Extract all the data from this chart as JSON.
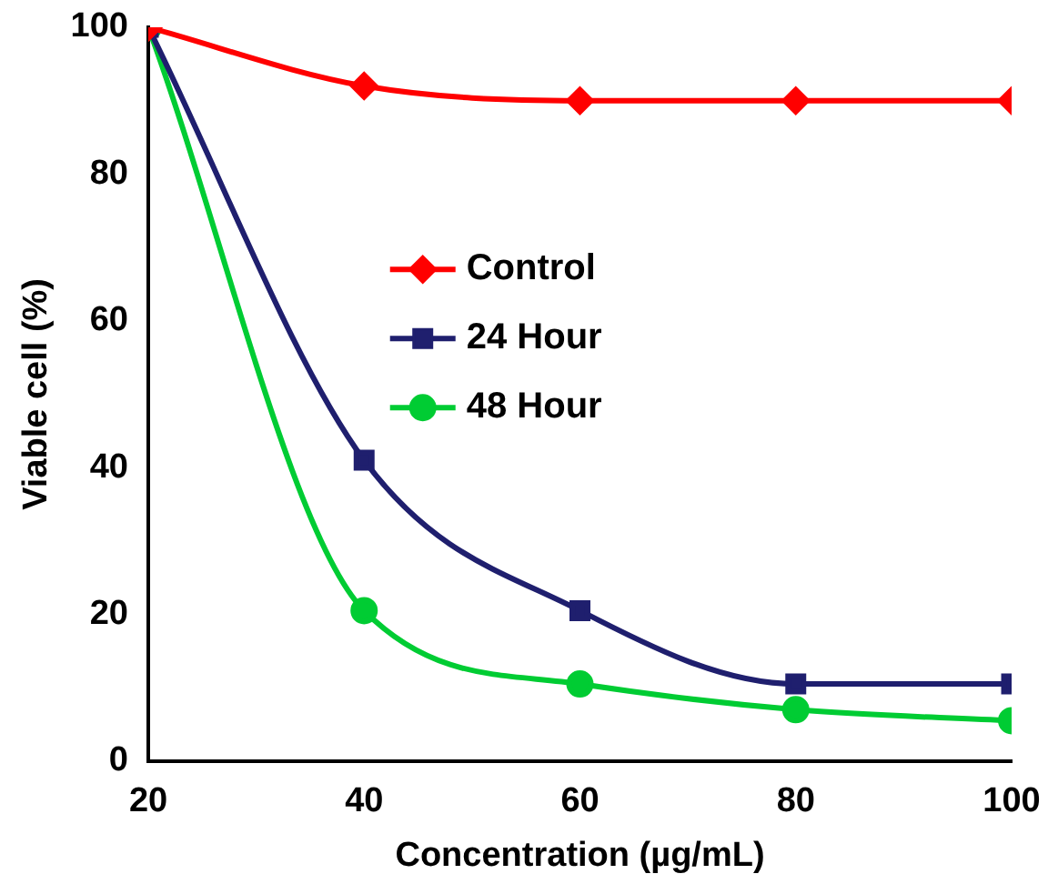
{
  "chart_data": {
    "type": "line",
    "xlabel": "Concentration (µg/mL)",
    "ylabel": "Viable cell (%)",
    "x": [
      20,
      40,
      60,
      80,
      100
    ],
    "series": [
      {
        "name": "Control",
        "color": "#ff0000",
        "marker": "diamond",
        "values": [
          100,
          92,
          90,
          90,
          90
        ]
      },
      {
        "name": "24 Hour",
        "color": "#1f1f6e",
        "marker": "square",
        "values": [
          100,
          41,
          20.5,
          10.5,
          10.5
        ]
      },
      {
        "name": "48 Hour",
        "color": "#00cc33",
        "marker": "circle",
        "values": [
          100,
          20.5,
          10.5,
          7,
          5.5
        ]
      }
    ],
    "xlim": [
      20,
      100
    ],
    "xticks": [
      20,
      40,
      60,
      80,
      100
    ],
    "ylim": [
      0,
      100
    ],
    "yticks": [
      0,
      20,
      40,
      60,
      80,
      100
    ],
    "grid": false,
    "legend": "center"
  }
}
